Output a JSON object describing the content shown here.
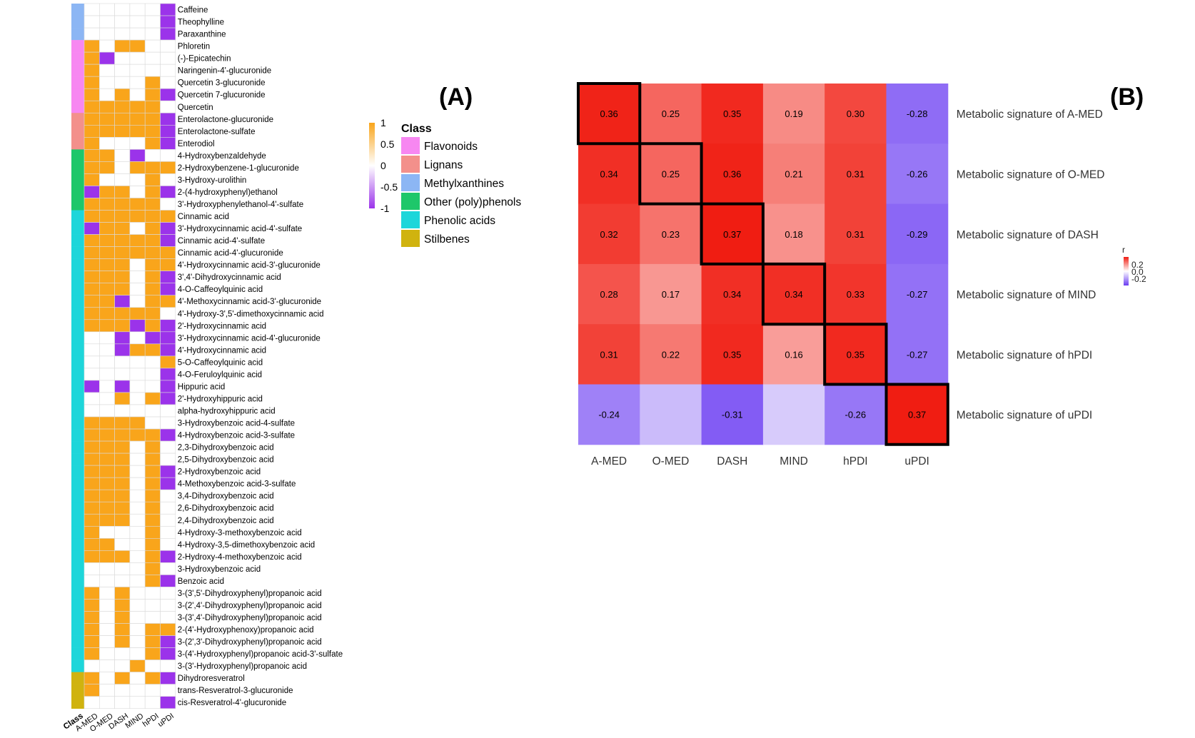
{
  "panel_a": {
    "label": "(A)",
    "class_axis_label": "Class",
    "columns": [
      "A-MED",
      "O-MED",
      "DASH",
      "MIND",
      "hPDI",
      "uPDI"
    ],
    "legend": {
      "title": "Class",
      "items": [
        {
          "name": "Flavonoids",
          "color": "#f787f1"
        },
        {
          "name": "Lignans",
          "color": "#f3908b"
        },
        {
          "name": "Methylxanthines",
          "color": "#8cb6f4"
        },
        {
          "name": "Other (poly)phenols",
          "color": "#1ec76a"
        },
        {
          "name": "Phenolic acids",
          "color": "#1dd6da"
        },
        {
          "name": "Stilbenes",
          "color": "#d0b30f"
        }
      ]
    },
    "colorbar": {
      "ticks": [
        "1",
        "0.5",
        "0",
        "-0.5",
        "-1"
      ],
      "colors": {
        "pos": "#f9a51b",
        "mid": "#ffffff",
        "neg": "#9b33ea"
      }
    }
  },
  "panel_b": {
    "label": "(B)",
    "colorbar": {
      "title": "r",
      "ticks": [
        "0.2",
        "0.0",
        "-0.2"
      ],
      "colors": {
        "pos": "#f01d12",
        "mid": "#ffffff",
        "neg": "#6b3df2"
      }
    }
  },
  "chart_data": [
    {
      "type": "heatmap",
      "title": "(A)",
      "x": [
        "A-MED",
        "O-MED",
        "DASH",
        "MIND",
        "hPDI",
        "uPDI"
      ],
      "class_colors": {
        "Flavonoids": "#f787f1",
        "Lignans": "#f3908b",
        "Methylxanthines": "#8cb6f4",
        "Other (poly)phenols": "#1ec76a",
        "Phenolic acids": "#1dd6da",
        "Stilbenes": "#d0b30f"
      },
      "value_scale": [
        -1,
        1
      ],
      "rows": [
        {
          "name": "Caffeine",
          "class": "Methylxanthines",
          "values": [
            0,
            0,
            0,
            0,
            0,
            -1
          ]
        },
        {
          "name": "Theophylline",
          "class": "Methylxanthines",
          "values": [
            0,
            0,
            0,
            0,
            0,
            -1
          ]
        },
        {
          "name": "Paraxanthine",
          "class": "Methylxanthines",
          "values": [
            0,
            0,
            0,
            0,
            0,
            -1
          ]
        },
        {
          "name": "Phloretin",
          "class": "Flavonoids",
          "values": [
            1,
            0,
            1,
            1,
            0,
            0
          ]
        },
        {
          "name": "(-)-Epicatechin",
          "class": "Flavonoids",
          "values": [
            1,
            -1,
            0,
            0,
            0,
            0
          ]
        },
        {
          "name": "Naringenin-4'-glucuronide",
          "class": "Flavonoids",
          "values": [
            1,
            0,
            0,
            0,
            0,
            0
          ]
        },
        {
          "name": "Quercetin 3-glucuronide",
          "class": "Flavonoids",
          "values": [
            1,
            0,
            0,
            0,
            1,
            0
          ]
        },
        {
          "name": "Quercetin 7-glucuronide",
          "class": "Flavonoids",
          "values": [
            1,
            0,
            1,
            0,
            1,
            -1
          ]
        },
        {
          "name": "Quercetin",
          "class": "Flavonoids",
          "values": [
            1,
            1,
            1,
            1,
            1,
            0
          ]
        },
        {
          "name": "Enterolactone-glucuronide",
          "class": "Lignans",
          "values": [
            1,
            1,
            1,
            1,
            1,
            -1
          ]
        },
        {
          "name": "Enterolactone-sulfate",
          "class": "Lignans",
          "values": [
            1,
            1,
            1,
            1,
            1,
            -1
          ]
        },
        {
          "name": "Enterodiol",
          "class": "Lignans",
          "values": [
            1,
            0,
            0,
            0,
            1,
            -1
          ]
        },
        {
          "name": "4-Hydroxybenzaldehyde",
          "class": "Other (poly)phenols",
          "values": [
            1,
            1,
            0,
            -1,
            0,
            0
          ]
        },
        {
          "name": "2-Hydroxybenzene-1-glucuronide",
          "class": "Other (poly)phenols",
          "values": [
            1,
            1,
            0,
            1,
            1,
            1
          ]
        },
        {
          "name": "3-Hydroxy-urolithin",
          "class": "Other (poly)phenols",
          "values": [
            1,
            0,
            0,
            0,
            1,
            0
          ]
        },
        {
          "name": "2-(4-hydroxyphenyl)ethanol",
          "class": "Other (poly)phenols",
          "values": [
            -1,
            1,
            1,
            0,
            1,
            -1
          ]
        },
        {
          "name": "3'-Hydroxyphenylethanol-4'-sulfate",
          "class": "Other (poly)phenols",
          "values": [
            1,
            1,
            1,
            1,
            1,
            0
          ]
        },
        {
          "name": "Cinnamic acid",
          "class": "Phenolic acids",
          "values": [
            1,
            1,
            1,
            1,
            1,
            1
          ]
        },
        {
          "name": "3'-Hydroxycinnamic acid-4'-sulfate",
          "class": "Phenolic acids",
          "values": [
            -1,
            1,
            1,
            0,
            1,
            -1
          ]
        },
        {
          "name": "Cinnamic acid-4'-sulfate",
          "class": "Phenolic acids",
          "values": [
            1,
            1,
            1,
            1,
            1,
            -1
          ]
        },
        {
          "name": "Cinnamic acid-4'-glucuronide",
          "class": "Phenolic acids",
          "values": [
            1,
            1,
            1,
            1,
            1,
            1
          ]
        },
        {
          "name": "4'-Hydroxycinnamic acid-3'-glucuronide",
          "class": "Phenolic acids",
          "values": [
            1,
            1,
            1,
            0,
            1,
            1
          ]
        },
        {
          "name": "3',4'-Dihydroxycinnamic acid",
          "class": "Phenolic acids",
          "values": [
            1,
            1,
            1,
            0,
            1,
            -1
          ]
        },
        {
          "name": "4-O-Caffeoylquinic acid",
          "class": "Phenolic acids",
          "values": [
            1,
            1,
            1,
            0,
            1,
            -1
          ]
        },
        {
          "name": "4'-Methoxycinnamic acid-3'-glucuronide",
          "class": "Phenolic acids",
          "values": [
            1,
            1,
            -1,
            0,
            1,
            1
          ]
        },
        {
          "name": "4'-Hydroxy-3',5'-dimethoxycinnamic acid",
          "class": "Phenolic acids",
          "values": [
            1,
            1,
            1,
            1,
            1,
            0
          ]
        },
        {
          "name": "2'-Hydroxycinnamic acid",
          "class": "Phenolic acids",
          "values": [
            1,
            1,
            1,
            -1,
            1,
            -1
          ]
        },
        {
          "name": "3'-Hydroxycinnamic acid-4'-glucuronide",
          "class": "Phenolic acids",
          "values": [
            0,
            0,
            -1,
            0,
            -1,
            -1
          ]
        },
        {
          "name": "4'-Hydroxycinnamic acid",
          "class": "Phenolic acids",
          "values": [
            0,
            0,
            -1,
            1,
            1,
            -1
          ]
        },
        {
          "name": "5-O-Caffeoylquinic acid",
          "class": "Phenolic acids",
          "values": [
            0,
            0,
            0,
            0,
            0,
            1
          ]
        },
        {
          "name": "4-O-Feruloylquinic acid",
          "class": "Phenolic acids",
          "values": [
            0,
            0,
            0,
            0,
            0,
            -1
          ]
        },
        {
          "name": "Hippuric acid",
          "class": "Phenolic acids",
          "values": [
            -1,
            0,
            -1,
            0,
            0,
            -1
          ]
        },
        {
          "name": "2'-Hydroxyhippuric acid",
          "class": "Phenolic acids",
          "values": [
            0,
            0,
            1,
            0,
            1,
            -1
          ]
        },
        {
          "name": "alpha-hydroxyhippuric acid",
          "class": "Phenolic acids",
          "values": [
            0,
            0,
            0,
            0,
            0,
            0
          ]
        },
        {
          "name": "3-Hydroxybenzoic acid-4-sulfate",
          "class": "Phenolic acids",
          "values": [
            1,
            1,
            1,
            1,
            0,
            0
          ]
        },
        {
          "name": "4-Hydroxybenzoic acid-3-sulfate",
          "class": "Phenolic acids",
          "values": [
            1,
            1,
            1,
            1,
            1,
            -1
          ]
        },
        {
          "name": "2,3-Dihydroxybenzoic acid",
          "class": "Phenolic acids",
          "values": [
            1,
            1,
            1,
            0,
            1,
            0
          ]
        },
        {
          "name": "2,5-Dihydroxybenzoic acid",
          "class": "Phenolic acids",
          "values": [
            1,
            1,
            1,
            0,
            1,
            0
          ]
        },
        {
          "name": "2-Hydroxybenzoic acid",
          "class": "Phenolic acids",
          "values": [
            1,
            1,
            1,
            0,
            1,
            -1
          ]
        },
        {
          "name": "4-Methoxybenzoic acid-3-sulfate",
          "class": "Phenolic acids",
          "values": [
            1,
            1,
            1,
            0,
            1,
            -1
          ]
        },
        {
          "name": "3,4-Dihydroxybenzoic acid",
          "class": "Phenolic acids",
          "values": [
            1,
            1,
            1,
            0,
            1,
            0
          ]
        },
        {
          "name": "2,6-Dihydroxybenzoic acid",
          "class": "Phenolic acids",
          "values": [
            1,
            1,
            1,
            0,
            1,
            0
          ]
        },
        {
          "name": "2,4-Dihydroxybenzoic acid",
          "class": "Phenolic acids",
          "values": [
            1,
            1,
            1,
            0,
            1,
            0
          ]
        },
        {
          "name": "4-Hydroxy-3-methoxybenzoic acid",
          "class": "Phenolic acids",
          "values": [
            1,
            0,
            0,
            0,
            1,
            0
          ]
        },
        {
          "name": "4-Hydroxy-3,5-dimethoxybenzoic acid",
          "class": "Phenolic acids",
          "values": [
            1,
            1,
            0,
            0,
            1,
            0
          ]
        },
        {
          "name": "2-Hydroxy-4-methoxybenzoic acid",
          "class": "Phenolic acids",
          "values": [
            1,
            1,
            1,
            0,
            1,
            -1
          ]
        },
        {
          "name": "3-Hydroxybenzoic acid",
          "class": "Phenolic acids",
          "values": [
            0,
            0,
            0,
            0,
            1,
            0
          ]
        },
        {
          "name": "Benzoic acid",
          "class": "Phenolic acids",
          "values": [
            0,
            0,
            0,
            0,
            1,
            -1
          ]
        },
        {
          "name": "3-(3',5'-Dihydroxyphenyl)propanoic acid",
          "class": "Phenolic acids",
          "values": [
            1,
            0,
            1,
            0,
            0,
            0
          ]
        },
        {
          "name": "3-(2',4'-Dihydroxyphenyl)propanoic acid",
          "class": "Phenolic acids",
          "values": [
            1,
            0,
            1,
            0,
            0,
            0
          ]
        },
        {
          "name": "3-(3',4'-Dihydroxyphenyl)propanoic acid",
          "class": "Phenolic acids",
          "values": [
            1,
            0,
            1,
            0,
            0,
            0
          ]
        },
        {
          "name": "2-(4'-Hydroxyphenoxy)propanoic acid",
          "class": "Phenolic acids",
          "values": [
            1,
            0,
            1,
            0,
            1,
            1
          ]
        },
        {
          "name": "3-(2',3'-Dihydroxyphenyl)propanoic acid",
          "class": "Phenolic acids",
          "values": [
            1,
            0,
            1,
            0,
            1,
            -1
          ]
        },
        {
          "name": "3-(4'-Hydroxyphenyl)propanoic acid-3'-sulfate",
          "class": "Phenolic acids",
          "values": [
            1,
            0,
            0,
            0,
            1,
            -1
          ]
        },
        {
          "name": "3-(3'-Hydroxyphenyl)propanoic acid",
          "class": "Phenolic acids",
          "values": [
            0,
            0,
            0,
            1,
            0,
            0
          ]
        },
        {
          "name": "Dihydroresveratrol",
          "class": "Stilbenes",
          "values": [
            1,
            0,
            1,
            0,
            1,
            -1
          ]
        },
        {
          "name": "trans-Resveratrol-3-glucuronide",
          "class": "Stilbenes",
          "values": [
            1,
            0,
            0,
            0,
            0,
            0
          ]
        },
        {
          "name": "cis-Resveratrol-4'-glucuronide",
          "class": "Stilbenes",
          "values": [
            0,
            0,
            0,
            0,
            0,
            -1
          ]
        }
      ]
    },
    {
      "type": "heatmap",
      "title": "(B)",
      "x": [
        "A-MED",
        "O-MED",
        "DASH",
        "MIND",
        "hPDI",
        "uPDI"
      ],
      "y": [
        "Metabolic signature of A-MED",
        "Metabolic signature of O-MED",
        "Metabolic signature of DASH",
        "Metabolic signature of MIND",
        "Metabolic signature of hPDI",
        "Metabolic signature of uPDI"
      ],
      "values": [
        [
          0.36,
          0.25,
          0.35,
          0.19,
          0.3,
          -0.28
        ],
        [
          0.34,
          0.25,
          0.36,
          0.21,
          0.31,
          -0.26
        ],
        [
          0.32,
          0.23,
          0.37,
          0.18,
          0.31,
          -0.29
        ],
        [
          0.28,
          0.17,
          0.34,
          0.34,
          0.33,
          -0.27
        ],
        [
          0.31,
          0.22,
          0.35,
          0.16,
          0.35,
          -0.27
        ],
        [
          -0.24,
          -0.13,
          -0.31,
          -0.1,
          -0.26,
          0.37
        ]
      ],
      "labels": [
        [
          "0.36",
          "0.25",
          "0.35",
          "0.19",
          "0.30",
          "-0.28"
        ],
        [
          "0.34",
          "0.25",
          "0.36",
          "0.21",
          "0.31",
          "-0.26"
        ],
        [
          "0.32",
          "0.23",
          "0.37",
          "0.18",
          "0.31",
          "-0.29"
        ],
        [
          "0.28",
          "0.17",
          "0.34",
          "0.34",
          "0.33",
          "-0.27"
        ],
        [
          "0.31",
          "0.22",
          "0.35",
          "0.16",
          "0.35",
          "-0.27"
        ],
        [
          "-0.24",
          "",
          "-0.31",
          "",
          "-0.26",
          "0.37"
        ]
      ],
      "highlight_diagonal": true,
      "legend_title": "r",
      "legend_ticks": [
        "0.2",
        "0.0",
        "-0.2"
      ]
    }
  ]
}
